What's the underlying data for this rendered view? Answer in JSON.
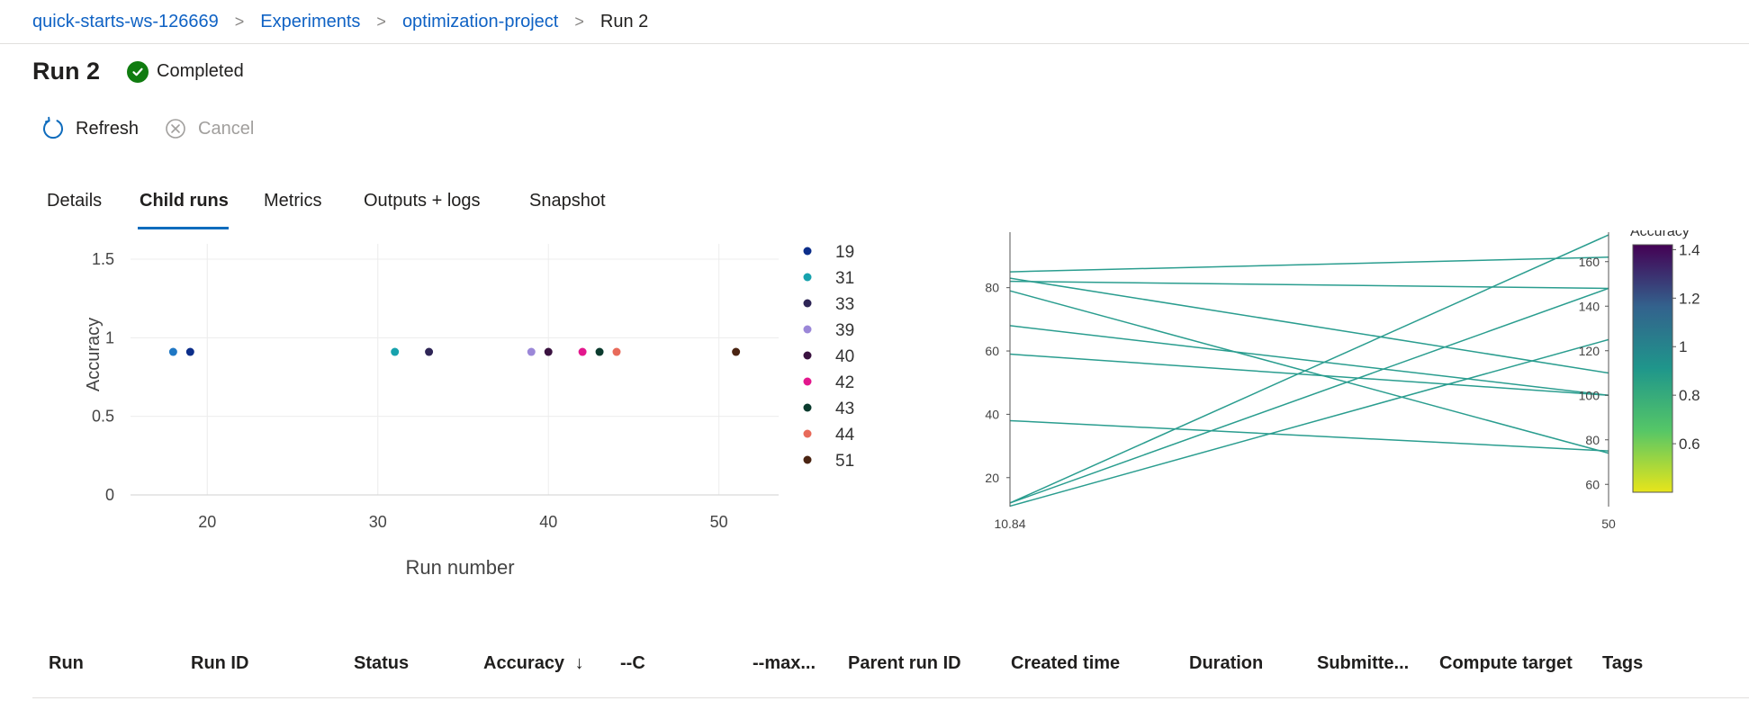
{
  "breadcrumb": {
    "items": [
      "quick-starts-ws-126669",
      "Experiments",
      "optimization-project"
    ],
    "current": "Run 2",
    "separator": ">"
  },
  "header": {
    "title": "Run 2",
    "status": "Completed",
    "status_color": "#107c10"
  },
  "commands": {
    "refresh": "Refresh",
    "cancel": "Cancel"
  },
  "tabs": [
    "Details",
    "Child runs",
    "Metrics",
    "Outputs + logs",
    "Snapshot"
  ],
  "active_tab": "Child runs",
  "chart_data": [
    {
      "type": "scatter",
      "xlabel": "Run number",
      "ylabel": "Accuracy",
      "xlim": [
        15.5,
        53.5
      ],
      "ylim": [
        0,
        1.5
      ],
      "x_ticks": [
        "20",
        "30",
        "40",
        "50"
      ],
      "y_ticks": [
        "0",
        "0.5",
        "1",
        "1.5"
      ],
      "grid": true,
      "legend_position": "right",
      "series": [
        {
          "name": "19",
          "color": "#0c2e8a",
          "points": [
            {
              "x": 19,
              "y": 0.91
            }
          ]
        },
        {
          "name": "31",
          "color": "#17a2ad",
          "points": [
            {
              "x": 31,
              "y": 0.91
            }
          ]
        },
        {
          "name": "33",
          "color": "#2e2556",
          "points": [
            {
              "x": 33,
              "y": 0.91
            }
          ]
        },
        {
          "name": "39",
          "color": "#9b87d8",
          "points": [
            {
              "x": 39,
              "y": 0.91
            }
          ]
        },
        {
          "name": "40",
          "color": "#3a1240",
          "points": [
            {
              "x": 40,
              "y": 0.91
            }
          ]
        },
        {
          "name": "42",
          "color": "#e3178d",
          "points": [
            {
              "x": 42,
              "y": 0.91
            }
          ]
        },
        {
          "name": "43",
          "color": "#0b3b2e",
          "points": [
            {
              "x": 43,
              "y": 0.91
            }
          ]
        },
        {
          "name": "44",
          "color": "#e86a5a",
          "points": [
            {
              "x": 44,
              "y": 0.91
            }
          ]
        },
        {
          "name": "51",
          "color": "#4a2412",
          "points": [
            {
              "x": 51,
              "y": 0.91
            }
          ]
        }
      ],
      "extra_points": [
        {
          "x": 18,
          "y": 0.91,
          "color": "#1f77c4"
        }
      ]
    },
    {
      "type": "parallel-coordinates",
      "axes": [
        {
          "ticks": [
            "20",
            "40",
            "60",
            "80"
          ],
          "min_label": "10.84",
          "range": [
            10.84,
            89
          ]
        },
        {
          "ticks": [
            "60",
            "80",
            "100",
            "120",
            "140",
            "160"
          ],
          "min_label": "50",
          "range": [
            50,
            170
          ]
        }
      ],
      "lines": [
        {
          "from": 85,
          "to": 162
        },
        {
          "from": 83,
          "to": 110
        },
        {
          "from": 82,
          "to": 148
        },
        {
          "from": 79,
          "to": 74
        },
        {
          "from": 68,
          "to": 100
        },
        {
          "from": 59,
          "to": 100
        },
        {
          "from": 38,
          "to": 75
        },
        {
          "from": 12,
          "to": 172
        },
        {
          "from": 12,
          "to": 148
        },
        {
          "from": 11,
          "to": 125
        }
      ],
      "line_color": "#2a9d8f",
      "colorbar": {
        "title": "Accuracy",
        "ticks": [
          "0.6",
          "0.8",
          "1",
          "1.2",
          "1.4"
        ],
        "range": [
          0.4,
          1.42
        ]
      }
    }
  ],
  "table": {
    "columns": [
      "Run",
      "Run ID",
      "Status",
      "Accuracy",
      "--C",
      "--max...",
      "Parent run ID",
      "Created time",
      "Duration",
      "Submitte...",
      "Compute target",
      "Tags"
    ],
    "sort_indicator": "↓"
  }
}
